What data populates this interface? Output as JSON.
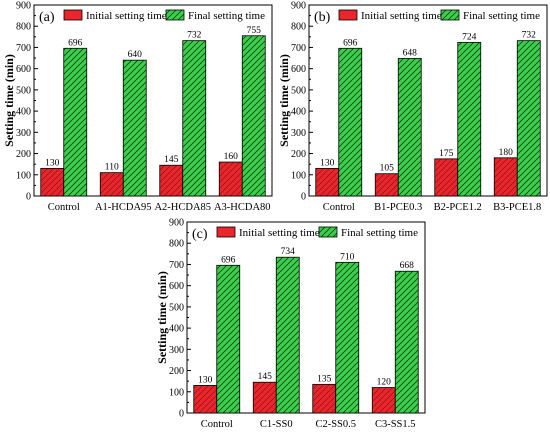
{
  "legend": {
    "initial_label": "Initial setting time",
    "final_label": "Final setting time"
  },
  "colors": {
    "initial": "#e8262b",
    "final": "#39d14a",
    "hatch": "#1a3a1a",
    "axis": "#000000"
  },
  "chart_data": [
    {
      "type": "bar",
      "panel_label": "(a)",
      "ylabel": "Setting time (min)",
      "xlabel": "",
      "ylim": [
        0,
        900
      ],
      "yticks": [
        0,
        100,
        200,
        300,
        400,
        500,
        600,
        700,
        800,
        900
      ],
      "categories": [
        "Control",
        "A1-HCDA95",
        "A2-HCDA85",
        "A3-HCDA80"
      ],
      "series": [
        {
          "name": "Initial setting time",
          "values": [
            130,
            110,
            145,
            160
          ]
        },
        {
          "name": "Final setting time",
          "values": [
            696,
            640,
            732,
            755
          ]
        }
      ],
      "legend_position": "top"
    },
    {
      "type": "bar",
      "panel_label": "(b)",
      "ylabel": "Setting time (min)",
      "xlabel": "",
      "ylim": [
        0,
        900
      ],
      "yticks": [
        0,
        100,
        200,
        300,
        400,
        500,
        600,
        700,
        800,
        900
      ],
      "categories": [
        "Control",
        "B1-PCE0.3",
        "B2-PCE1.2",
        "B3-PCE1.8"
      ],
      "series": [
        {
          "name": "Initial setting time",
          "values": [
            130,
            105,
            175,
            180
          ]
        },
        {
          "name": "Final setting time",
          "values": [
            696,
            648,
            724,
            732
          ]
        }
      ],
      "legend_position": "top"
    },
    {
      "type": "bar",
      "panel_label": "(c)",
      "ylabel": "Setting time (min)",
      "xlabel": "",
      "ylim": [
        0,
        900
      ],
      "yticks": [
        0,
        100,
        200,
        300,
        400,
        500,
        600,
        700,
        800,
        900
      ],
      "categories": [
        "Control",
        "C1-SS0",
        "C2-SS0.5",
        "C3-SS1.5"
      ],
      "series": [
        {
          "name": "Initial setting time",
          "values": [
            130,
            145,
            135,
            120
          ]
        },
        {
          "name": "Final setting time",
          "values": [
            696,
            734,
            710,
            668
          ]
        }
      ],
      "legend_position": "top"
    }
  ]
}
